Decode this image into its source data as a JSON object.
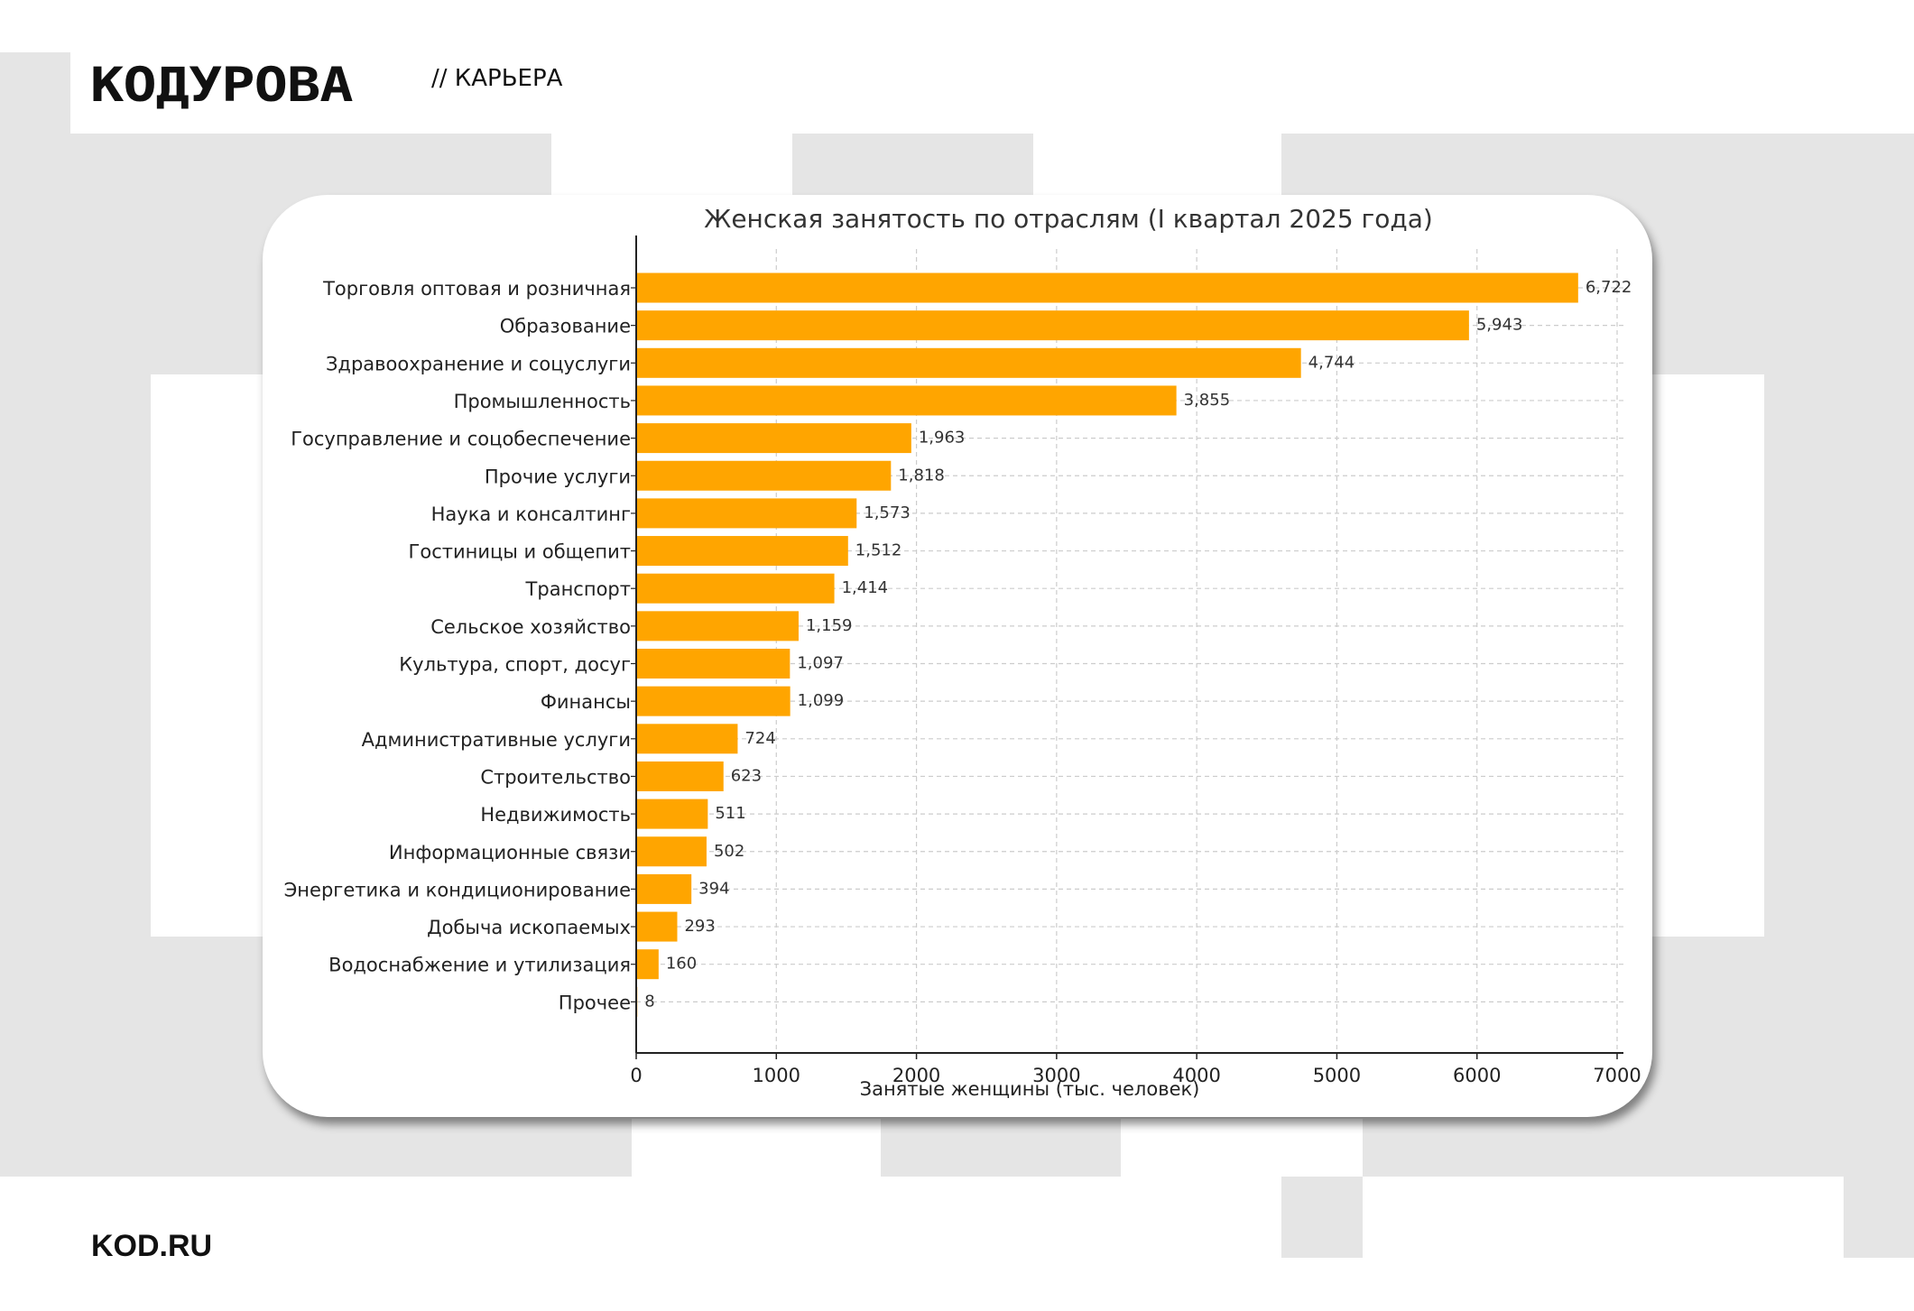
{
  "header": {
    "logo_text": "КОДУРОВА",
    "section_label": "//  КАРЬЕРА"
  },
  "footer": {
    "site_label": "KOD.RU"
  },
  "colors": {
    "bar": "#FFA500",
    "background_blocks": "#e5e5e5"
  },
  "chart_data": {
    "type": "bar",
    "orientation": "horizontal",
    "title": "Женская занятость по отраслям (I квартал 2025 года)",
    "xlabel": "Занятые женщины (тыс. человек)",
    "ylabel": "",
    "xlim": [
      0,
      7000
    ],
    "xticks": [
      "0",
      "1000",
      "2000",
      "3000",
      "4000",
      "5000",
      "6000",
      "7000"
    ],
    "grid": true,
    "categories": [
      "Торговля оптовая и розничная",
      "Образование",
      "Здравоохранение и соцуслуги",
      "Промышленность",
      "Госуправление и соцобеспечение",
      "Прочие услуги",
      "Наука и консалтинг",
      "Гостиницы и общепит",
      "Транспорт",
      "Сельское хозяйство",
      "Культура, спорт, досуг",
      "Финансы",
      "Административные услуги",
      "Строительство",
      "Недвижимость",
      "Информационные связи",
      "Энергетика и кондиционирование",
      "Добыча ископаемых",
      "Водоснабжение и утилизация",
      "Прочее"
    ],
    "values": [
      6722,
      5943,
      4744,
      3855,
      1963,
      1818,
      1573,
      1512,
      1414,
      1159,
      1097,
      1099,
      724,
      623,
      511,
      502,
      394,
      293,
      160,
      8
    ],
    "value_labels": [
      "6,722",
      "5,943",
      "4,744",
      "3,855",
      "1,963",
      "1,818",
      "1,573",
      "1,512",
      "1,414",
      "1,159",
      "1,097",
      "1,099",
      "724",
      "623",
      "511",
      "502",
      "394",
      "293",
      "160",
      "8"
    ]
  }
}
